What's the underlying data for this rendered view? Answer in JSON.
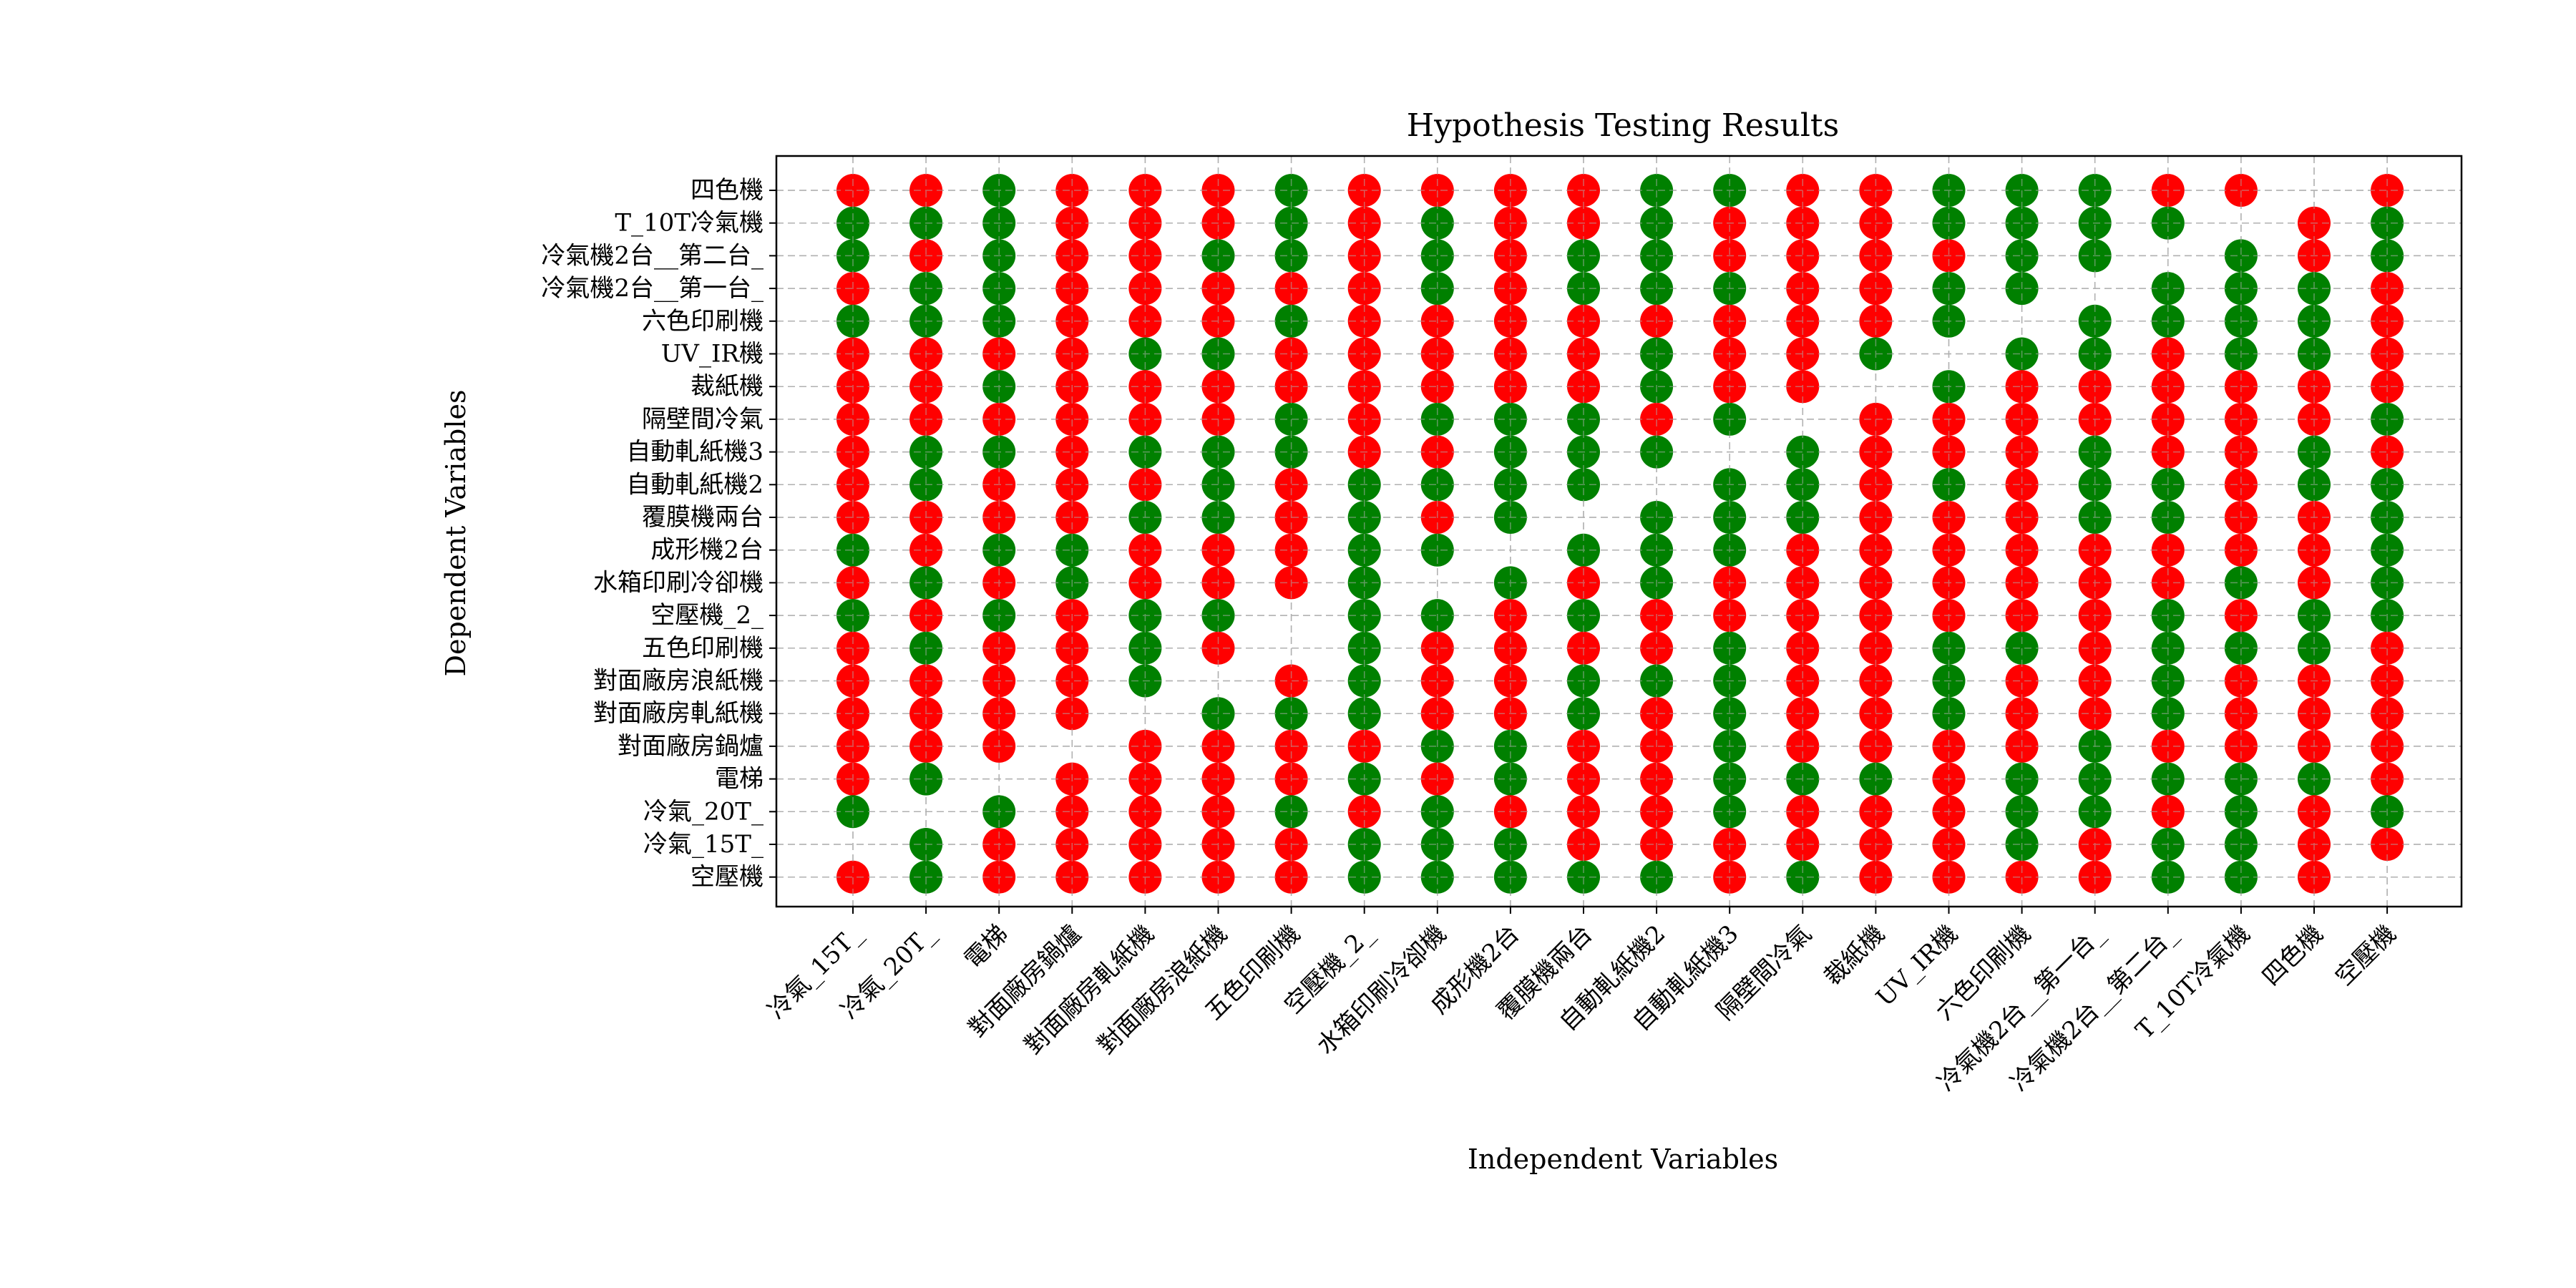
{
  "chart_data": {
    "type": "scatter",
    "title": "Hypothesis Testing Results",
    "xlabel": "Independent Variables",
    "ylabel": "Dependent Variables",
    "grid": true,
    "colors": {
      "sig": "#008000",
      "nonsig": "#ff0000"
    },
    "legend": "none",
    "x_categories": [
      "冷氣_15T_",
      "冷氣_20T_",
      "電梯",
      "對面廠房鍋爐",
      "對面廠房軋紙機",
      "對面廠房浪紙機",
      "五色印刷機",
      "空壓機_2_",
      "水箱印刷冷卻機",
      "成形機2台",
      "覆膜機兩台",
      "自動軋紙機2",
      "自動軋紙機3",
      "隔壁間冷氣",
      "裁紙機",
      "UV_IR機",
      "六色印刷機",
      "冷氣機2台__第一台_",
      "冷氣機2台__第二台_",
      "T_10T冷氣機",
      "四色機",
      "空壓機"
    ],
    "y_categories": [
      "四色機",
      "T_10T冷氣機",
      "冷氣機2台__第二台_",
      "冷氣機2台__第一台_",
      "六色印刷機",
      "UV_IR機",
      "裁紙機",
      "隔壁間冷氣",
      "自動軋紙機3",
      "自動軋紙機2",
      "覆膜機兩台",
      "成形機2台",
      "水箱印刷冷卻機",
      "空壓機_2_",
      "五色印刷機",
      "對面廠房浪紙機",
      "對面廠房軋紙機",
      "對面廠房鍋爐",
      "電梯",
      "冷氣_20T_",
      "冷氣_15T_",
      "空壓機"
    ],
    "legend_note": "Rows listed top to bottom; each row string gives columns left to right. G = green, R = red, . = no marker.",
    "matrix": [
      "RRGRRRGRRRRGGRRGGGRR.R",
      "GGGRRRGRGRRGRRRGGGG.RG",
      "GRGRRGGRGRGGRRRRGG.GRG",
      "RGGRRRRRGRGGGRRGG.GGGR",
      "GGGRRRGRRRRRRRRG.GGGGR",
      "RRRRGGRRRRRGRRG.GGRGGR",
      "RRGRRRRRRRRGRR.GRRRRRR",
      "RRRRRRGRGGGRG.RRRRRRRG",
      "RGGRGGGRRGGG.GRRRGRRGR",
      "RGRRRGRGGGG.GGRGRGGRGG",
      "RRRRGGRGRG.GGGRRRGGRRG",
      "GRGGRRRGG.GGGRRRRRRRRG",
      "RGRGRRRG.GRGRRRRRRRGRG",
      "GRGRGG.GGRGRRRRRRRGRGG",
      "RGRRGR.GRRRRGRRGGRGGGR",
      "RRRRG.RGRRGGGRRGRRGRRR",
      "RRRR.GGGRRGRGRRGRRGRRR",
      "RRR.RRRRGGRRGRRRRGRRRR",
      "RG.RRRRGRGRRGGGRGGGGGR",
      "G.GRRRGRGRRRGRRRGGRGRG",
      ".GRRRRRGGGRRRRRRGRGGRR",
      "RGRRRRRGGGGGRGRRRRGGR."
    ]
  }
}
